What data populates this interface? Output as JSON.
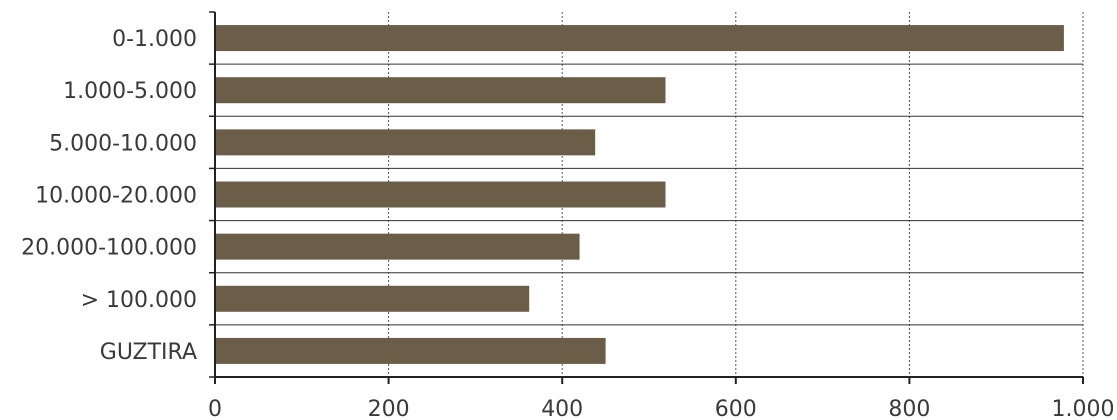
{
  "chart_data": {
    "type": "bar",
    "orientation": "horizontal",
    "categories": [
      "0-1.000",
      "1.000-5.000",
      "5.000-10.000",
      "10.000-20.000",
      "20.000-100.000",
      "> 100.000",
      "GUZTIRA"
    ],
    "values": [
      978,
      519,
      438,
      519,
      420,
      362,
      450
    ],
    "xlim": [
      0,
      1000
    ],
    "xticks": [
      0,
      200,
      400,
      600,
      800,
      1000
    ],
    "xtick_labels": [
      "0",
      "200",
      "400",
      "600",
      "800",
      "1.000"
    ],
    "grid": "vertical dotted",
    "bar_color": "#6b5e49"
  }
}
